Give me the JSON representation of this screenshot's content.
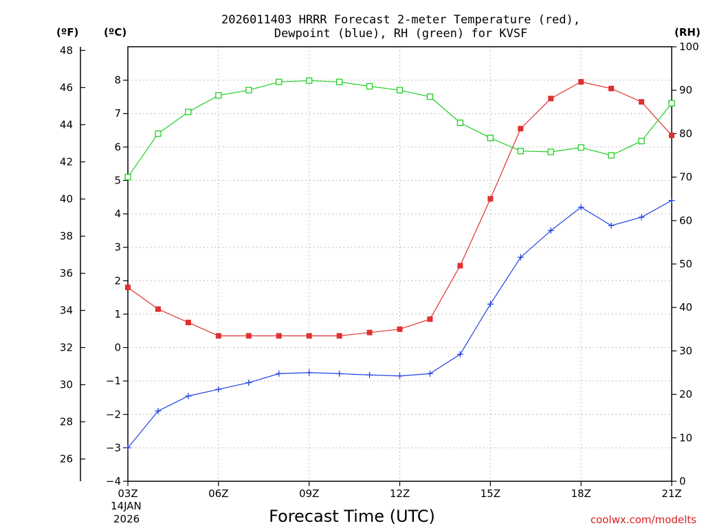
{
  "chart_data": {
    "type": "line",
    "title_line1": "2026011403 HRRR Forecast 2-meter Temperature (red),",
    "title_line2": "Dewpoint (blue), RH (green) for KVSF",
    "xlabel": "Forecast Time (UTC)",
    "credit": "coolwx.com/modelts",
    "date_line1": "14JAN",
    "date_line2": "2026",
    "units": {
      "fahrenheit": "(ºF)",
      "celsius": "(ºC)",
      "rh": "(RH)"
    },
    "x": [
      3,
      4,
      5,
      6,
      7,
      8,
      9,
      10,
      11,
      12,
      13,
      14,
      15,
      16,
      17,
      18,
      19,
      20,
      21
    ],
    "x_ticks": [
      3,
      6,
      9,
      12,
      15,
      18,
      21
    ],
    "x_tick_labels": [
      "03Z",
      "06Z",
      "09Z",
      "12Z",
      "15Z",
      "18Z",
      "21Z"
    ],
    "xlim": [
      3,
      21
    ],
    "ylim_celsius": [
      -4,
      9
    ],
    "ylim_rh": [
      0,
      100
    ],
    "ylim_fahrenheit": [
      24.8,
      48.2
    ],
    "celsius_ticks": [
      -4,
      -3,
      -2,
      -1,
      0,
      1,
      2,
      3,
      4,
      5,
      6,
      7,
      8
    ],
    "rh_ticks": [
      0,
      10,
      20,
      30,
      40,
      50,
      60,
      70,
      80,
      90,
      100
    ],
    "fahrenheit_ticks": [
      26,
      28,
      30,
      32,
      34,
      36,
      38,
      40,
      42,
      44,
      46,
      48
    ],
    "grid": true,
    "series": [
      {
        "name": "Temperature",
        "axis": "celsius",
        "color": "#e03030",
        "marker": "filled-square",
        "values": [
          1.8,
          1.15,
          0.75,
          0.35,
          0.35,
          0.35,
          0.35,
          0.35,
          0.45,
          0.55,
          0.85,
          2.45,
          4.45,
          6.55,
          7.45,
          7.95,
          7.75,
          7.35,
          6.35
        ]
      },
      {
        "name": "Dewpoint",
        "axis": "celsius",
        "color": "#2040e0",
        "marker": "plus",
        "values": [
          -3.0,
          -1.9,
          -1.45,
          -1.25,
          -1.05,
          -0.78,
          -0.75,
          -0.78,
          -0.82,
          -0.85,
          -0.78,
          -0.2,
          1.3,
          2.7,
          3.5,
          4.2,
          3.65,
          3.9,
          4.4
        ]
      },
      {
        "name": "RH",
        "axis": "rh",
        "color": "#20d020",
        "marker": "open-square",
        "values": [
          70.0,
          80.0,
          85.0,
          88.8,
          90.0,
          91.9,
          92.2,
          91.9,
          90.9,
          90.0,
          88.5,
          82.5,
          79.0,
          76.0,
          75.8,
          76.8,
          75.0,
          78.3,
          87.0
        ]
      }
    ]
  }
}
